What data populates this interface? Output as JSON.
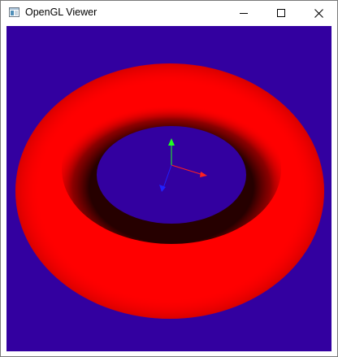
{
  "window": {
    "title": "OpenGL Viewer",
    "app_icon": "window-app-icon",
    "controls": {
      "minimize_icon": "minimize-icon",
      "maximize_icon": "maximize-icon",
      "close_icon": "close-icon"
    }
  },
  "viewport": {
    "background_color": "#3300a0",
    "object": "torus",
    "object_color": "#ff0000",
    "axes": {
      "x_color": "#ff2020",
      "y_color": "#20ff20",
      "z_color": "#2020ff"
    }
  }
}
